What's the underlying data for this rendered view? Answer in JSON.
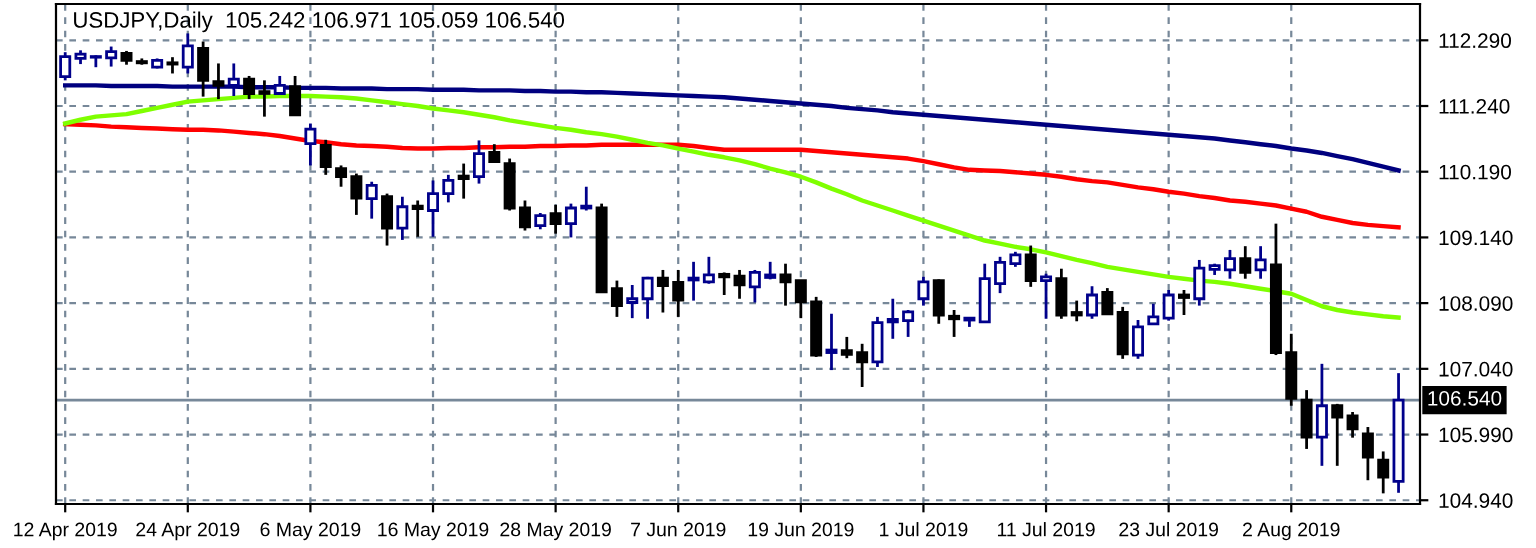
{
  "chart_data": {
    "type": "candlestick",
    "title": "USDJPY,Daily  105.242 106.971 105.059 106.540",
    "categories": [
      "12 Apr 2019",
      null,
      null,
      null,
      null,
      null,
      null,
      null,
      "24 Apr 2019",
      null,
      null,
      null,
      null,
      null,
      null,
      null,
      "6 May 2019",
      null,
      null,
      null,
      null,
      null,
      null,
      null,
      "16 May 2019",
      null,
      null,
      null,
      null,
      null,
      null,
      null,
      "28 May 2019",
      null,
      null,
      null,
      null,
      null,
      null,
      null,
      "7 Jun 2019",
      null,
      null,
      null,
      null,
      null,
      null,
      null,
      "19 Jun 2019",
      null,
      null,
      null,
      null,
      null,
      null,
      null,
      "1 Jul 2019",
      null,
      null,
      null,
      null,
      null,
      null,
      null,
      "11 Jul 2019",
      null,
      null,
      null,
      null,
      null,
      null,
      null,
      "23 Jul 2019",
      null,
      null,
      null,
      null,
      null,
      null,
      null,
      "2 Aug 2019",
      null,
      null,
      null,
      null,
      null,
      null,
      null
    ],
    "ohlc": [
      [
        111.71,
        112.1,
        111.65,
        112.03
      ],
      [
        112.0,
        112.13,
        111.91,
        112.07
      ],
      [
        112.02,
        112.05,
        111.86,
        112.03
      ],
      [
        112.01,
        112.19,
        111.87,
        112.11
      ],
      [
        112.08,
        112.12,
        111.9,
        111.97
      ],
      [
        111.95,
        112.0,
        111.9,
        111.93
      ],
      [
        111.86,
        112.0,
        111.84,
        111.97
      ],
      [
        111.93,
        112.02,
        111.76,
        111.91
      ],
      [
        111.86,
        112.4,
        111.76,
        112.2
      ],
      [
        112.16,
        112.27,
        111.39,
        111.65
      ],
      [
        111.63,
        111.92,
        111.35,
        111.57
      ],
      [
        111.57,
        111.92,
        111.4,
        111.67
      ],
      [
        111.67,
        111.72,
        111.35,
        111.44
      ],
      [
        111.47,
        111.65,
        111.07,
        111.44
      ],
      [
        111.44,
        111.72,
        111.44,
        111.57
      ],
      [
        111.55,
        111.72,
        111.1,
        111.1
      ],
      [
        110.64,
        110.96,
        110.29,
        110.87
      ],
      [
        110.61,
        110.7,
        110.14,
        110.27
      ],
      [
        110.24,
        110.29,
        109.95,
        110.11
      ],
      [
        110.11,
        110.16,
        109.5,
        109.77
      ],
      [
        109.76,
        110.03,
        109.44,
        109.97
      ],
      [
        109.79,
        109.84,
        109.01,
        109.29
      ],
      [
        109.29,
        109.79,
        109.1,
        109.63
      ],
      [
        109.64,
        109.73,
        109.15,
        109.6
      ],
      [
        109.57,
        110.05,
        109.15,
        109.84
      ],
      [
        109.84,
        110.14,
        109.7,
        110.05
      ],
      [
        110.12,
        110.32,
        109.76,
        110.08
      ],
      [
        110.11,
        110.69,
        110.0,
        110.48
      ],
      [
        110.5,
        110.63,
        110.33,
        110.35
      ],
      [
        110.32,
        110.4,
        109.57,
        109.61
      ],
      [
        109.61,
        109.73,
        109.25,
        109.31
      ],
      [
        109.33,
        109.53,
        109.27,
        109.49
      ],
      [
        109.52,
        109.66,
        109.2,
        109.36
      ],
      [
        109.36,
        109.68,
        109.14,
        109.61
      ],
      [
        109.61,
        109.95,
        109.57,
        109.64
      ],
      [
        109.61,
        109.68,
        108.27,
        108.27
      ],
      [
        108.32,
        108.45,
        107.87,
        108.05
      ],
      [
        108.1,
        108.38,
        107.85,
        108.16
      ],
      [
        108.16,
        108.51,
        107.84,
        108.49
      ],
      [
        108.49,
        108.62,
        107.94,
        108.37
      ],
      [
        108.42,
        108.62,
        107.87,
        108.14
      ],
      [
        108.46,
        108.75,
        108.13,
        108.49
      ],
      [
        108.43,
        108.83,
        108.4,
        108.54
      ],
      [
        108.55,
        108.58,
        108.22,
        108.51
      ],
      [
        108.52,
        108.62,
        108.16,
        108.38
      ],
      [
        108.35,
        108.62,
        108.1,
        108.58
      ],
      [
        108.5,
        108.75,
        108.47,
        108.54
      ],
      [
        108.54,
        108.72,
        108.05,
        108.43
      ],
      [
        108.45,
        108.45,
        107.85,
        108.11
      ],
      [
        108.11,
        108.19,
        107.23,
        107.26
      ],
      [
        107.3,
        107.92,
        107.02,
        107.34
      ],
      [
        107.33,
        107.55,
        107.21,
        107.27
      ],
      [
        107.3,
        107.44,
        106.75,
        107.15
      ],
      [
        107.15,
        107.87,
        107.07,
        107.78
      ],
      [
        107.79,
        108.16,
        107.52,
        107.83
      ],
      [
        107.81,
        107.98,
        107.55,
        107.95
      ],
      [
        108.16,
        108.51,
        108.05,
        108.43
      ],
      [
        108.45,
        108.47,
        107.76,
        107.9
      ],
      [
        107.88,
        107.98,
        107.55,
        107.84
      ],
      [
        107.82,
        107.85,
        107.71,
        107.85
      ],
      [
        107.79,
        108.72,
        107.79,
        108.48
      ],
      [
        108.4,
        108.83,
        108.25,
        108.74
      ],
      [
        108.72,
        108.91,
        108.67,
        108.86
      ],
      [
        108.86,
        109.01,
        108.35,
        108.45
      ],
      [
        108.45,
        108.56,
        107.84,
        108.51
      ],
      [
        108.48,
        108.64,
        107.84,
        107.9
      ],
      [
        107.94,
        108.13,
        107.8,
        107.9
      ],
      [
        107.9,
        108.36,
        107.84,
        108.22
      ],
      [
        108.26,
        108.33,
        107.9,
        107.92
      ],
      [
        107.94,
        108.03,
        107.2,
        107.28
      ],
      [
        107.26,
        107.82,
        107.2,
        107.71
      ],
      [
        107.76,
        108.08,
        107.76,
        107.87
      ],
      [
        107.85,
        108.3,
        107.81,
        108.22
      ],
      [
        108.22,
        108.3,
        107.9,
        108.18
      ],
      [
        108.16,
        108.78,
        108.05,
        108.65
      ],
      [
        108.63,
        108.72,
        108.54,
        108.69
      ],
      [
        108.62,
        108.94,
        108.48,
        108.8
      ],
      [
        108.8,
        109.0,
        108.48,
        108.58
      ],
      [
        108.62,
        109.0,
        108.48,
        108.78
      ],
      [
        108.7,
        109.36,
        107.26,
        107.3
      ],
      [
        107.3,
        107.6,
        106.45,
        106.57
      ],
      [
        106.54,
        106.7,
        105.76,
        105.95
      ],
      [
        105.95,
        107.12,
        105.49,
        106.45
      ],
      [
        106.45,
        106.48,
        105.49,
        106.27
      ],
      [
        106.29,
        106.35,
        105.94,
        106.08
      ],
      [
        106.0,
        106.11,
        105.26,
        105.63
      ],
      [
        105.58,
        105.72,
        105.05,
        105.31
      ],
      [
        105.242,
        106.971,
        105.059,
        106.54
      ]
    ],
    "colors": [
      "#00008b",
      "#00008b",
      "#00008b",
      "#00008b",
      "#000000",
      "#000000",
      "#00008b",
      "#000000",
      "#00008b",
      "#000000",
      "#000000",
      "#00008b",
      "#000000",
      "#000000",
      "#00008b",
      "#000000",
      "#00008b",
      "#000000",
      "#000000",
      "#000000",
      "#00008b",
      "#000000",
      "#00008b",
      "#000000",
      "#00008b",
      "#00008b",
      "#000000",
      "#00008b",
      "#000000",
      "#000000",
      "#000000",
      "#00008b",
      "#000000",
      "#00008b",
      "#00008b",
      "#000000",
      "#000000",
      "#00008b",
      "#00008b",
      "#000000",
      "#000000",
      "#00008b",
      "#00008b",
      "#000000",
      "#000000",
      "#00008b",
      "#00008b",
      "#000000",
      "#000000",
      "#000000",
      "#00008b",
      "#000000",
      "#000000",
      "#00008b",
      "#00008b",
      "#00008b",
      "#00008b",
      "#000000",
      "#000000",
      "#00008b",
      "#00008b",
      "#00008b",
      "#00008b",
      "#000000",
      "#00008b",
      "#000000",
      "#000000",
      "#00008b",
      "#000000",
      "#000000",
      "#00008b",
      "#00008b",
      "#00008b",
      "#000000",
      "#00008b",
      "#00008b",
      "#00008b",
      "#000000",
      "#00008b",
      "#000000",
      "#000000",
      "#000000",
      "#00008b",
      "#000000",
      "#000000",
      "#000000",
      "#000000",
      "#00008b"
    ],
    "series": [
      {
        "type": "line",
        "color": "#00007f",
        "values": [
          111.57,
          111.57,
          111.57,
          111.56,
          111.56,
          111.56,
          111.56,
          111.55,
          111.55,
          111.55,
          111.55,
          111.55,
          111.54,
          111.54,
          111.54,
          111.53,
          111.53,
          111.53,
          111.52,
          111.52,
          111.52,
          111.51,
          111.51,
          111.51,
          111.5,
          111.5,
          111.5,
          111.49,
          111.49,
          111.49,
          111.48,
          111.48,
          111.47,
          111.47,
          111.46,
          111.46,
          111.45,
          111.44,
          111.43,
          111.42,
          111.41,
          111.4,
          111.39,
          111.38,
          111.36,
          111.34,
          111.32,
          111.3,
          111.28,
          111.26,
          111.24,
          111.21,
          111.19,
          111.17,
          111.14,
          111.12,
          111.1,
          111.08,
          111.06,
          111.04,
          111.02,
          111.0,
          110.98,
          110.96,
          110.94,
          110.92,
          110.9,
          110.88,
          110.86,
          110.84,
          110.82,
          110.8,
          110.78,
          110.76,
          110.74,
          110.72,
          110.69,
          110.66,
          110.63,
          110.6,
          110.56,
          110.53,
          110.49,
          110.44,
          110.39,
          110.33,
          110.27,
          110.21
        ]
      },
      {
        "type": "line",
        "color": "#ff0000",
        "values": [
          110.95,
          110.94,
          110.93,
          110.91,
          110.9,
          110.89,
          110.88,
          110.87,
          110.86,
          110.86,
          110.85,
          110.83,
          110.81,
          110.79,
          110.76,
          110.72,
          110.68,
          110.66,
          110.63,
          110.61,
          110.6,
          110.59,
          110.57,
          110.56,
          110.56,
          110.57,
          110.57,
          110.58,
          110.58,
          110.59,
          110.59,
          110.6,
          110.6,
          110.61,
          110.61,
          110.62,
          110.62,
          110.62,
          110.62,
          110.62,
          110.62,
          110.6,
          110.57,
          110.54,
          110.54,
          110.54,
          110.54,
          110.54,
          110.54,
          110.52,
          110.5,
          110.48,
          110.46,
          110.44,
          110.42,
          110.4,
          110.36,
          110.31,
          110.26,
          110.22,
          110.21,
          110.2,
          110.18,
          110.16,
          110.14,
          110.11,
          110.07,
          110.04,
          110.02,
          109.98,
          109.94,
          109.91,
          109.87,
          109.84,
          109.8,
          109.77,
          109.73,
          109.71,
          109.68,
          109.65,
          109.6,
          109.55,
          109.47,
          109.42,
          109.37,
          109.34,
          109.32,
          109.3
        ]
      },
      {
        "type": "line",
        "color": "#7fff00",
        "values": [
          110.96,
          111.02,
          111.07,
          111.09,
          111.11,
          111.16,
          111.21,
          111.26,
          111.31,
          111.33,
          111.35,
          111.37,
          111.39,
          111.39,
          111.4,
          111.4,
          111.4,
          111.39,
          111.38,
          111.36,
          111.33,
          111.3,
          111.27,
          111.24,
          111.2,
          111.17,
          111.14,
          111.1,
          111.06,
          111.01,
          110.97,
          110.93,
          110.89,
          110.86,
          110.82,
          110.79,
          110.75,
          110.7,
          110.65,
          110.61,
          110.56,
          110.51,
          110.46,
          110.42,
          110.37,
          110.31,
          110.24,
          110.18,
          110.11,
          110.02,
          109.92,
          109.83,
          109.73,
          109.65,
          109.57,
          109.49,
          109.41,
          109.33,
          109.25,
          109.17,
          109.09,
          109.04,
          108.99,
          108.95,
          108.9,
          108.84,
          108.78,
          108.73,
          108.67,
          108.63,
          108.59,
          108.55,
          108.51,
          108.48,
          108.45,
          108.43,
          108.4,
          108.36,
          108.32,
          108.28,
          108.24,
          108.14,
          108.04,
          107.98,
          107.94,
          107.91,
          107.88,
          107.86
        ]
      }
    ],
    "ylim": [
      104.88,
      112.87
    ],
    "yticks": [
      {
        "value": 104.94,
        "label": "104.940"
      },
      {
        "value": 105.99,
        "label": "105.990"
      },
      {
        "value": 107.04,
        "label": "107.040"
      },
      {
        "value": 108.09,
        "label": "108.090"
      },
      {
        "value": 109.14,
        "label": "109.140"
      },
      {
        "value": 110.19,
        "label": "110.190"
      },
      {
        "value": 111.24,
        "label": "111.240"
      },
      {
        "value": 112.29,
        "label": "112.290"
      }
    ],
    "ref_lines": [
      {
        "axis": "y",
        "value": 106.54,
        "label": "106.540",
        "color": "#778899"
      }
    ],
    "grid": true
  }
}
